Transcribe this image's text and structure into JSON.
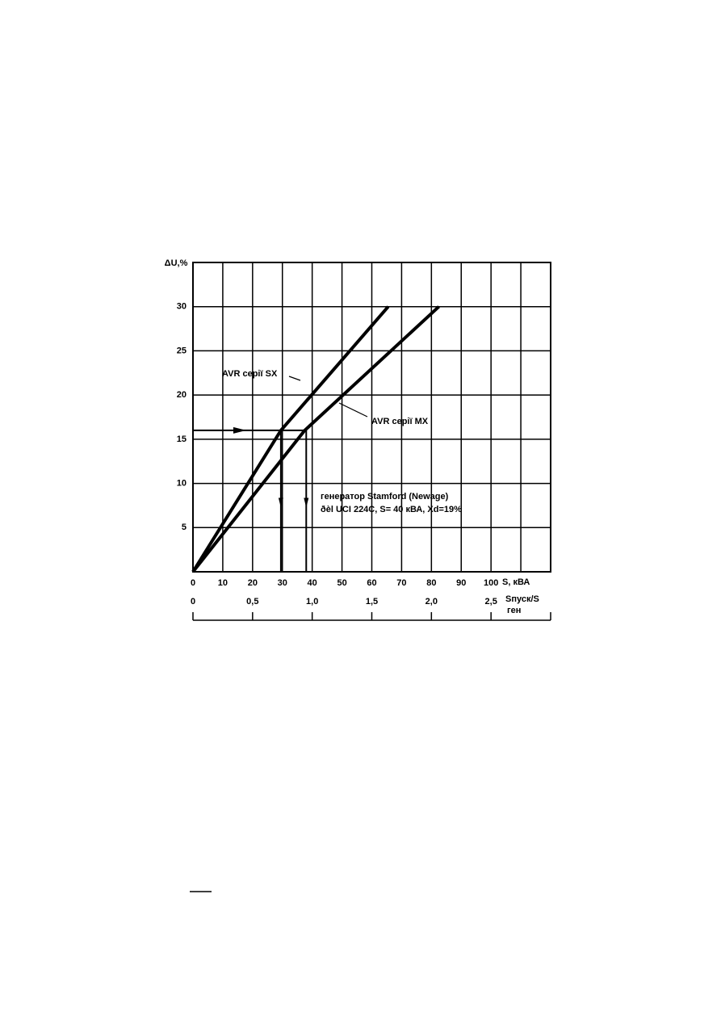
{
  "chart_data": {
    "type": "line",
    "ylabel": "ΔU,%",
    "xlabel": "S, кВА",
    "x2label": [
      "Sпуск/S",
      "ген"
    ],
    "xlim": [
      0,
      120
    ],
    "xticks": [
      0,
      10,
      20,
      30,
      40,
      50,
      60,
      70,
      80,
      90,
      100
    ],
    "ylim": [
      0,
      35
    ],
    "yticks": [
      5,
      10,
      15,
      20,
      25,
      30
    ],
    "x2lim": [
      0,
      3
    ],
    "x2ticks": [
      0,
      {
        "value": 0.5,
        "label": "0,5"
      },
      {
        "value": 1.0,
        "label": "1,0"
      },
      {
        "value": 1.5,
        "label": "1,5"
      },
      {
        "value": 2.0,
        "label": "2,0"
      },
      {
        "value": 2.5,
        "label": "2,5"
      }
    ],
    "grid": true,
    "series": [
      {
        "name": "AVR серії SX",
        "color": "#000000",
        "x": [
          0,
          29.5,
          65.5
        ],
        "values": [
          0,
          16,
          30
        ]
      },
      {
        "name": "AVR серії MX",
        "color": "#000000",
        "x": [
          0,
          37.5,
          82.5
        ],
        "values": [
          0,
          16,
          30
        ]
      }
    ],
    "guide": {
      "y": 16,
      "x": [
        29.5,
        38
      ]
    },
    "annotations": [
      "генератор Stamford (Newage)",
      "ðèl UCI 224C, S= 40 кВА, Xd=19%"
    ]
  }
}
